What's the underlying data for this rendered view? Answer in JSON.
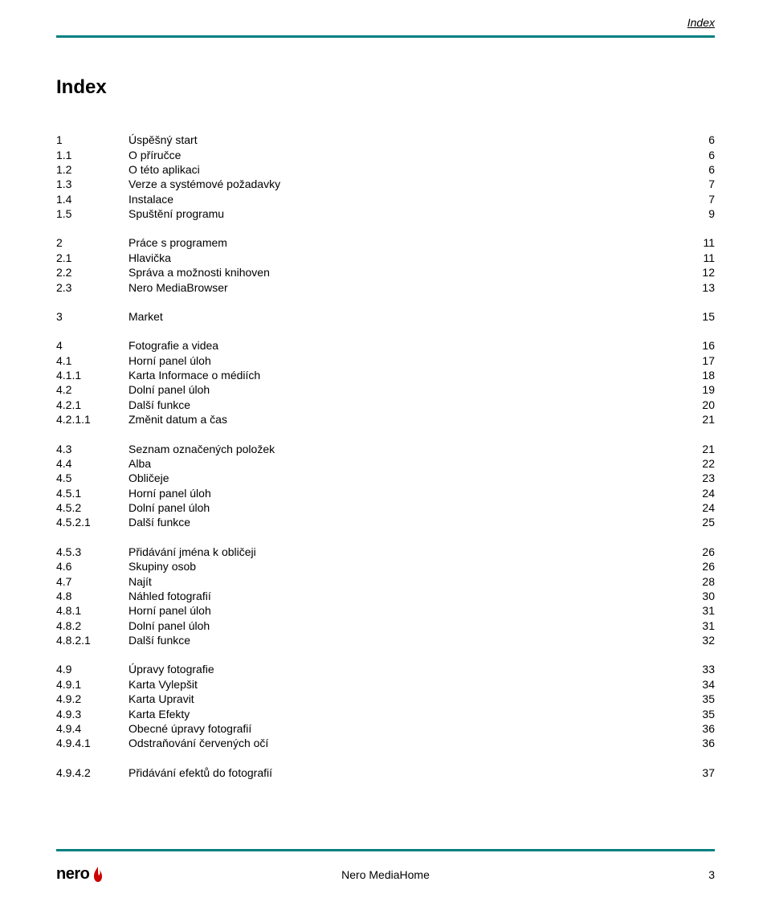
{
  "header_label": "Index",
  "title": "Index",
  "accent_color": "#008080",
  "flame_color": "#cc0000",
  "toc_groups": [
    [
      {
        "num": "1",
        "txt": "Úspěšný start",
        "pg": "6"
      },
      {
        "num": "1.1",
        "txt": "O příručce",
        "pg": "6"
      },
      {
        "num": "1.2",
        "txt": "O této aplikaci",
        "pg": "6"
      },
      {
        "num": "1.3",
        "txt": "Verze a systémové požadavky",
        "pg": "7"
      },
      {
        "num": "1.4",
        "txt": "Instalace",
        "pg": "7"
      },
      {
        "num": "1.5",
        "txt": "Spuštění programu",
        "pg": "9"
      }
    ],
    [
      {
        "num": "2",
        "txt": "Práce s programem",
        "pg": "11"
      },
      {
        "num": "2.1",
        "txt": "Hlavička",
        "pg": "11"
      },
      {
        "num": "2.2",
        "txt": "Správa a možnosti knihoven",
        "pg": "12"
      },
      {
        "num": "2.3",
        "txt": "Nero MediaBrowser",
        "pg": "13"
      }
    ],
    [
      {
        "num": "3",
        "txt": "Market",
        "pg": "15"
      }
    ],
    [
      {
        "num": "4",
        "txt": "Fotografie a videa",
        "pg": "16"
      },
      {
        "num": "4.1",
        "txt": "Horní panel úloh",
        "pg": "17"
      },
      {
        "num": "4.1.1",
        "txt": "Karta Informace o médiích",
        "pg": "18"
      },
      {
        "num": "4.2",
        "txt": "Dolní panel úloh",
        "pg": "19"
      },
      {
        "num": "4.2.1",
        "txt": "Další funkce",
        "pg": "20"
      },
      {
        "num": "4.2.1.1",
        "txt": "Změnit datum a čas",
        "pg": "21"
      }
    ],
    [
      {
        "num": "4.3",
        "txt": "Seznam označených položek",
        "pg": "21"
      },
      {
        "num": "4.4",
        "txt": "Alba",
        "pg": "22"
      },
      {
        "num": "4.5",
        "txt": "Obličeje",
        "pg": "23"
      },
      {
        "num": "4.5.1",
        "txt": "Horní panel úloh",
        "pg": "24"
      },
      {
        "num": "4.5.2",
        "txt": "Dolní panel úloh",
        "pg": "24"
      },
      {
        "num": "4.5.2.1",
        "txt": "Další funkce",
        "pg": "25"
      }
    ],
    [
      {
        "num": "4.5.3",
        "txt": "Přidávání jména k obličeji",
        "pg": "26"
      },
      {
        "num": "4.6",
        "txt": "Skupiny osob",
        "pg": "26"
      },
      {
        "num": "4.7",
        "txt": "Najít",
        "pg": "28"
      },
      {
        "num": "4.8",
        "txt": "Náhled fotografií",
        "pg": "30"
      },
      {
        "num": "4.8.1",
        "txt": "Horní panel úloh",
        "pg": "31"
      },
      {
        "num": "4.8.2",
        "txt": "Dolní panel úloh",
        "pg": "31"
      },
      {
        "num": "4.8.2.1",
        "txt": "Další funkce",
        "pg": "32"
      }
    ],
    [
      {
        "num": "4.9",
        "txt": "Úpravy fotografie",
        "pg": "33"
      },
      {
        "num": "4.9.1",
        "txt": "Karta Vylepšit",
        "pg": "34"
      },
      {
        "num": "4.9.2",
        "txt": "Karta Upravit",
        "pg": "35"
      },
      {
        "num": "4.9.3",
        "txt": "Karta Efekty",
        "pg": "35"
      },
      {
        "num": "4.9.4",
        "txt": "Obecné úpravy fotografií",
        "pg": "36"
      },
      {
        "num": "4.9.4.1",
        "txt": "Odstraňování červených očí",
        "pg": "36"
      }
    ],
    [
      {
        "num": "4.9.4.2",
        "txt": "Přidávání efektů do fotografií",
        "pg": "37"
      }
    ]
  ],
  "footer": {
    "logo_text": "nero",
    "center": "Nero MediaHome",
    "page": "3"
  }
}
